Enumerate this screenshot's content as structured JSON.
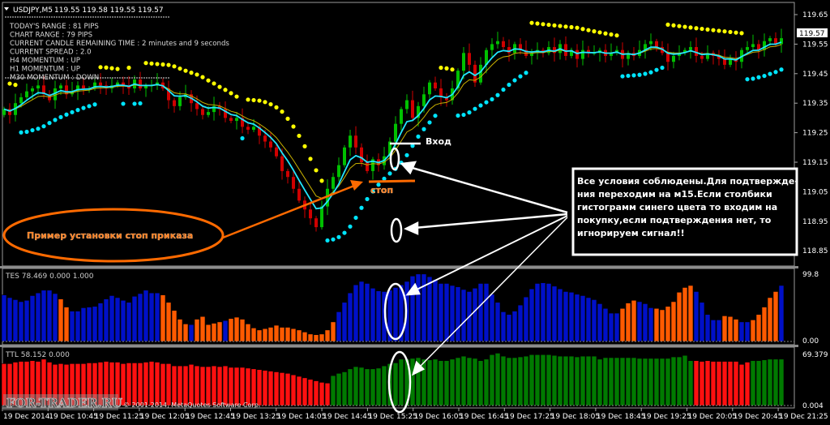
{
  "header": {
    "symbol": "USDJPY,M5",
    "ohlc": "119.55 119.58 119.55 119.57",
    "collapse_icon": "triangle-down-icon"
  },
  "info_panel": [
    "TODAY'S RANGE : 81 PIPS",
    "CHART RANGE : 79 PIPS",
    "CURRENT CANDLE REMAINING TIME : 2 minutes and 9 seconds",
    "CURRENT SPREAD : 2.0",
    "H4 MOMENTUM : UP",
    "H1 MOMENTUM : UP",
    "M30 MOMENTUM : DOWN"
  ],
  "price_axis": {
    "ticks": [
      "119.65",
      "119.55",
      "119.45",
      "119.35",
      "119.25",
      "119.15",
      "119.05",
      "118.95",
      "118.85"
    ],
    "current_price": "119.57"
  },
  "time_axis": [
    "19 Dec 2014",
    "19 Dec 10:45",
    "19 Dec 11:25",
    "19 Dec 12:05",
    "19 Dec 12:45",
    "19 Dec 13:25",
    "19 Dec 14:05",
    "19 Dec 14:45",
    "19 Dec 15:25",
    "19 Dec 16:05",
    "19 Dec 16:45",
    "19 Dec 17:25",
    "19 Dec 18:05",
    "19 Dec 18:45",
    "19 Dec 19:25",
    "19 Dec 20:05",
    "19 Dec 20:45",
    "19 Dec 21:25"
  ],
  "price_series": {
    "closes": [
      119.33,
      119.31,
      119.35,
      119.37,
      119.39,
      119.4,
      119.41,
      119.38,
      119.36,
      119.4,
      119.41,
      119.38,
      119.39,
      119.41,
      119.4,
      119.4,
      119.42,
      119.41,
      119.4,
      119.41,
      119.42,
      119.41,
      119.4,
      119.43,
      119.4,
      119.41,
      119.41,
      119.42,
      119.4,
      119.36,
      119.34,
      119.37,
      119.38,
      119.35,
      119.33,
      119.31,
      119.32,
      119.34,
      119.33,
      119.3,
      119.29,
      119.3,
      119.27,
      119.26,
      119.27,
      119.24,
      119.22,
      119.2,
      119.17,
      119.12,
      119.1,
      119.06,
      119.02,
      118.99,
      118.96,
      118.93,
      119.0,
      119.06,
      119.1,
      119.14,
      119.2,
      119.24,
      119.2,
      119.15,
      119.12,
      119.16,
      119.14,
      119.17,
      119.22,
      119.28,
      119.33,
      119.36,
      119.3,
      119.34,
      119.38,
      119.42,
      119.4,
      119.37,
      119.36,
      119.4,
      119.46,
      119.52,
      119.48,
      119.42,
      119.48,
      119.53,
      119.55,
      119.56,
      119.54,
      119.52,
      119.55,
      119.53,
      119.51,
      119.52,
      119.53,
      119.52,
      119.54,
      119.52,
      119.55,
      119.51,
      119.53,
      119.5,
      119.53,
      119.52,
      119.52,
      119.53,
      119.51,
      119.52,
      119.53,
      119.5,
      119.52,
      119.51,
      119.53,
      119.55,
      119.56,
      119.54,
      119.52,
      119.49,
      119.51,
      119.52,
      119.53,
      119.54,
      119.51,
      119.5,
      119.52,
      119.51,
      119.5,
      119.48,
      119.5,
      119.49,
      119.53,
      119.54,
      119.55,
      119.53,
      119.56,
      119.57,
      119.55,
      119.57
    ],
    "up_color": "#00c000",
    "down_color": "#d00000",
    "fast_ma_color": "#22e6ff",
    "slow_ma_color": "#c8b000",
    "sar_above_color": "#ffff00",
    "sar_below_color": "#00e5ff"
  },
  "tes": {
    "label": "TES 78.469 0.000 1.000",
    "max_label": "99.8",
    "zero_label": "0.00",
    "max": 99.8,
    "values": [
      69,
      65,
      62,
      59,
      61,
      68,
      72,
      76,
      76,
      71,
      63,
      51,
      45,
      45,
      50,
      51,
      52,
      57,
      63,
      68,
      65,
      61,
      58,
      67,
      71,
      76,
      72,
      72,
      69,
      58,
      46,
      33,
      26,
      25,
      33,
      37,
      25,
      27,
      29,
      31,
      34,
      36,
      33,
      26,
      20,
      17,
      19,
      21,
      24,
      21,
      21,
      19,
      17,
      14,
      11,
      10,
      11,
      17,
      29,
      44,
      58,
      72,
      84,
      89,
      86,
      79,
      75,
      74,
      76,
      80,
      84,
      89,
      97,
      100,
      100,
      96,
      92,
      86,
      86,
      83,
      81,
      77,
      74,
      79,
      86,
      86,
      70,
      58,
      44,
      40,
      45,
      54,
      66,
      78,
      86,
      87,
      86,
      82,
      78,
      74,
      73,
      70,
      68,
      65,
      62,
      56,
      49,
      42,
      42,
      49,
      57,
      61,
      59,
      56,
      50,
      49,
      47,
      52,
      59,
      73,
      80,
      83,
      74,
      58,
      40,
      32,
      32,
      38,
      37,
      33,
      29,
      29,
      32,
      40,
      51,
      65,
      74,
      83
    ],
    "colors": "bbbbbbbbbboobbbbbbbbbbbbbbbbooooobooooobooooooooooooooooooobbbbbbbbbbbbbbbbbbbbbbbbbbbbbbbbbbbbbbbbbbbbbbbbbbooobbbooooooobbbbbooobbooooobbbbbb",
    "blue": "#0010c8",
    "orange": "#ff5a00"
  },
  "ttl": {
    "label": "TTL 58.152 0.000",
    "max_label": "69.379",
    "zero_label": "0.004",
    "max": 69.379,
    "values": [
      56,
      56,
      58,
      59,
      59,
      60,
      59,
      62,
      58,
      55,
      56,
      55,
      56,
      56,
      56,
      57,
      57,
      58,
      59,
      58,
      58,
      56,
      57,
      57,
      57,
      58,
      59,
      58,
      56,
      56,
      53,
      53,
      53,
      55,
      53,
      52,
      52,
      53,
      52,
      53,
      51,
      51,
      51,
      50,
      49,
      48,
      47,
      46,
      45,
      44,
      43,
      41,
      39,
      37,
      35,
      33,
      31,
      30,
      40,
      43,
      45,
      49,
      52,
      51,
      49,
      49,
      50,
      53,
      56,
      57,
      62,
      62,
      63,
      64,
      62,
      61,
      62,
      60,
      60,
      62,
      64,
      66,
      64,
      63,
      60,
      62,
      68,
      70,
      66,
      64,
      64,
      65,
      66,
      68,
      68,
      68,
      68,
      67,
      66,
      66,
      66,
      65,
      66,
      66,
      66,
      62,
      64,
      64,
      64,
      64,
      64,
      64,
      63,
      63,
      63,
      63,
      63,
      63,
      65,
      65,
      67,
      60,
      60,
      59,
      60,
      59,
      59,
      59,
      59,
      59,
      55,
      58,
      60,
      60,
      61,
      62,
      62,
      62
    ],
    "colors": "rrrrrrrrrrrrrrrrrrrrrrrrrrrrrrrrrrrrrrrrrrrrrrrrrrrrrrrrrrggggggggggggggggggggggggggggggggggggggggggggggggggggggggggggggggrrrrrrrrrrggggggg",
    "green": "#007a00",
    "red": "#ff1010"
  },
  "annotations": {
    "entry_label": "Вход",
    "stop_label": "стоп",
    "stop_example": "Пример установки стоп приказа",
    "note_lines": [
      "Все условия соблюдены.Для подтвержде-",
      "ния переходим на м15.Если столбики",
      "гистограмм синего цвета то входим на",
      "покупку,если подтверждения нет, то",
      "игнорируем сигнал!!"
    ],
    "accent_orange": "#ff6a00"
  },
  "watermark": "FOR-TRADER.RU",
  "copyright": "© 2001-2014, MetaQuotes Software Corp."
}
